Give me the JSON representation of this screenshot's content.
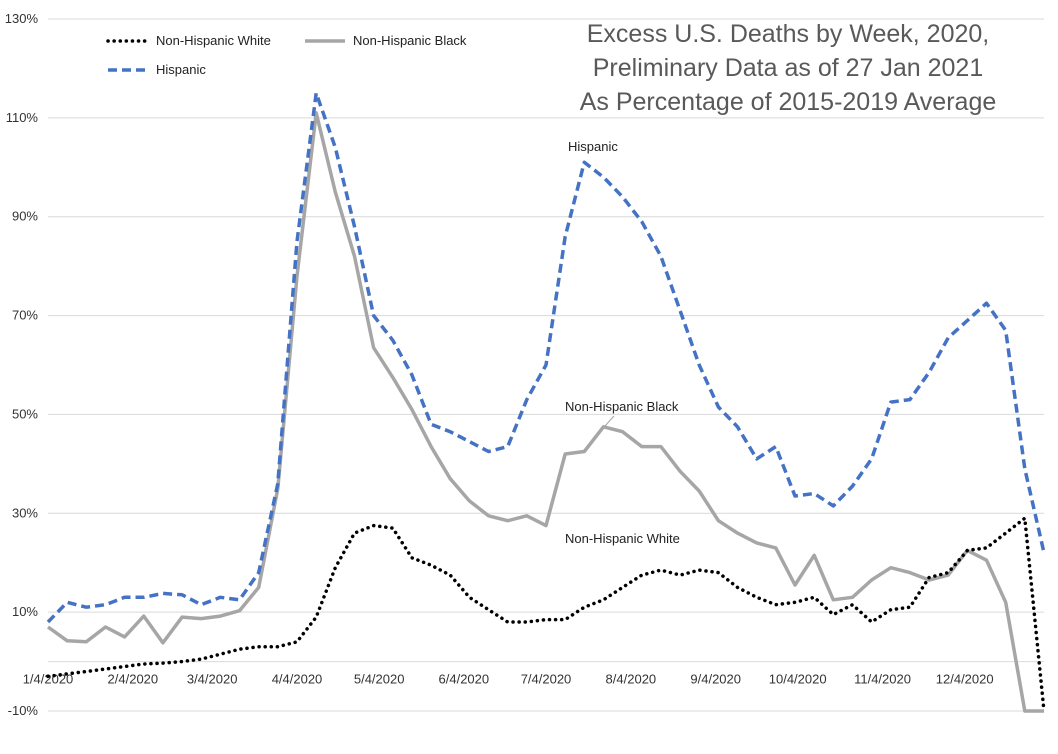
{
  "chart_data": {
    "type": "line",
    "title": [
      "Excess U.S. Deaths by Week, 2020,",
      "Preliminary Data as of 27 Jan 2021",
      "As Percentage of 2015-2019 Average"
    ],
    "xlabel": "",
    "ylabel": "",
    "ylim": [
      -10,
      130
    ],
    "y_ticks": [
      -10,
      10,
      30,
      50,
      70,
      90,
      110,
      130
    ],
    "y_tick_labels": [
      "-10%",
      "10%",
      "30%",
      "50%",
      "70%",
      "90%",
      "110%",
      "130%"
    ],
    "x_tick_labels": [
      "1/4/2020",
      "2/4/2020",
      "3/4/2020",
      "4/4/2020",
      "5/4/2020",
      "6/4/2020",
      "7/4/2020",
      "8/4/2020",
      "9/4/2020",
      "10/4/2020",
      "11/4/2020",
      "12/4/2020"
    ],
    "x_tick_index": [
      0,
      4.43,
      8.57,
      13,
      17.29,
      21.71,
      26,
      30.43,
      34.86,
      39.14,
      43.57,
      47.86
    ],
    "grid": "horizontal",
    "legend_position": "top-left",
    "weeks": 53,
    "series": [
      {
        "name": "Non-Hispanic White",
        "style": "dotted",
        "color": "#000000",
        "annotation": "Non-Hispanic White",
        "values": [
          -3,
          -2.5,
          -2,
          -1.5,
          -1,
          -0.5,
          -0.3,
          0,
          0.5,
          1.5,
          2.5,
          3,
          3,
          4,
          9,
          19,
          26,
          27.5,
          27,
          21,
          19.5,
          17.5,
          13,
          10.5,
          8,
          8,
          8.5,
          8.5,
          11,
          12.5,
          15,
          17.5,
          18.5,
          17.5,
          18.5,
          18,
          15,
          13,
          11.5,
          12,
          13,
          9.5,
          11.5,
          8,
          10.5,
          11,
          17,
          18,
          22.5,
          23,
          26,
          29,
          -10
        ]
      },
      {
        "name": "Non-Hispanic Black",
        "style": "solid",
        "color": "#a6a6a6",
        "annotation": "Non-Hispanic Black",
        "values": [
          7,
          4.2,
          4,
          7,
          5,
          9.2,
          3.8,
          9,
          8.7,
          9.2,
          10.3,
          15,
          35,
          78,
          111,
          95,
          82,
          63.5,
          57.5,
          51,
          43.5,
          37,
          32.5,
          29.5,
          28.5,
          29.5,
          27.5,
          42,
          42.5,
          47.5,
          46.5,
          43.5,
          43.5,
          38.5,
          34.5,
          28.5,
          26,
          24,
          23,
          15.5,
          21.5,
          12.5,
          13,
          16.5,
          19,
          18,
          16.5,
          17.5,
          22.5,
          20.5,
          12,
          -10,
          -10
        ]
      },
      {
        "name": "Hispanic",
        "style": "dashed",
        "color": "#4472c4",
        "annotation": "Hispanic",
        "values": [
          8,
          12,
          11,
          11.5,
          13,
          13,
          13.8,
          13.5,
          11.5,
          13,
          12.5,
          18,
          36,
          85,
          115,
          104,
          88,
          70,
          65,
          58,
          48,
          46.5,
          44.5,
          42.5,
          43.5,
          53,
          60,
          86,
          101,
          98,
          94,
          89,
          82,
          71,
          60,
          51.5,
          47.5,
          41,
          43.5,
          33.5,
          34,
          31.5,
          35.5,
          41,
          52.5,
          53,
          58.5,
          65.5,
          69,
          72.5,
          67,
          39,
          22
        ]
      }
    ]
  }
}
